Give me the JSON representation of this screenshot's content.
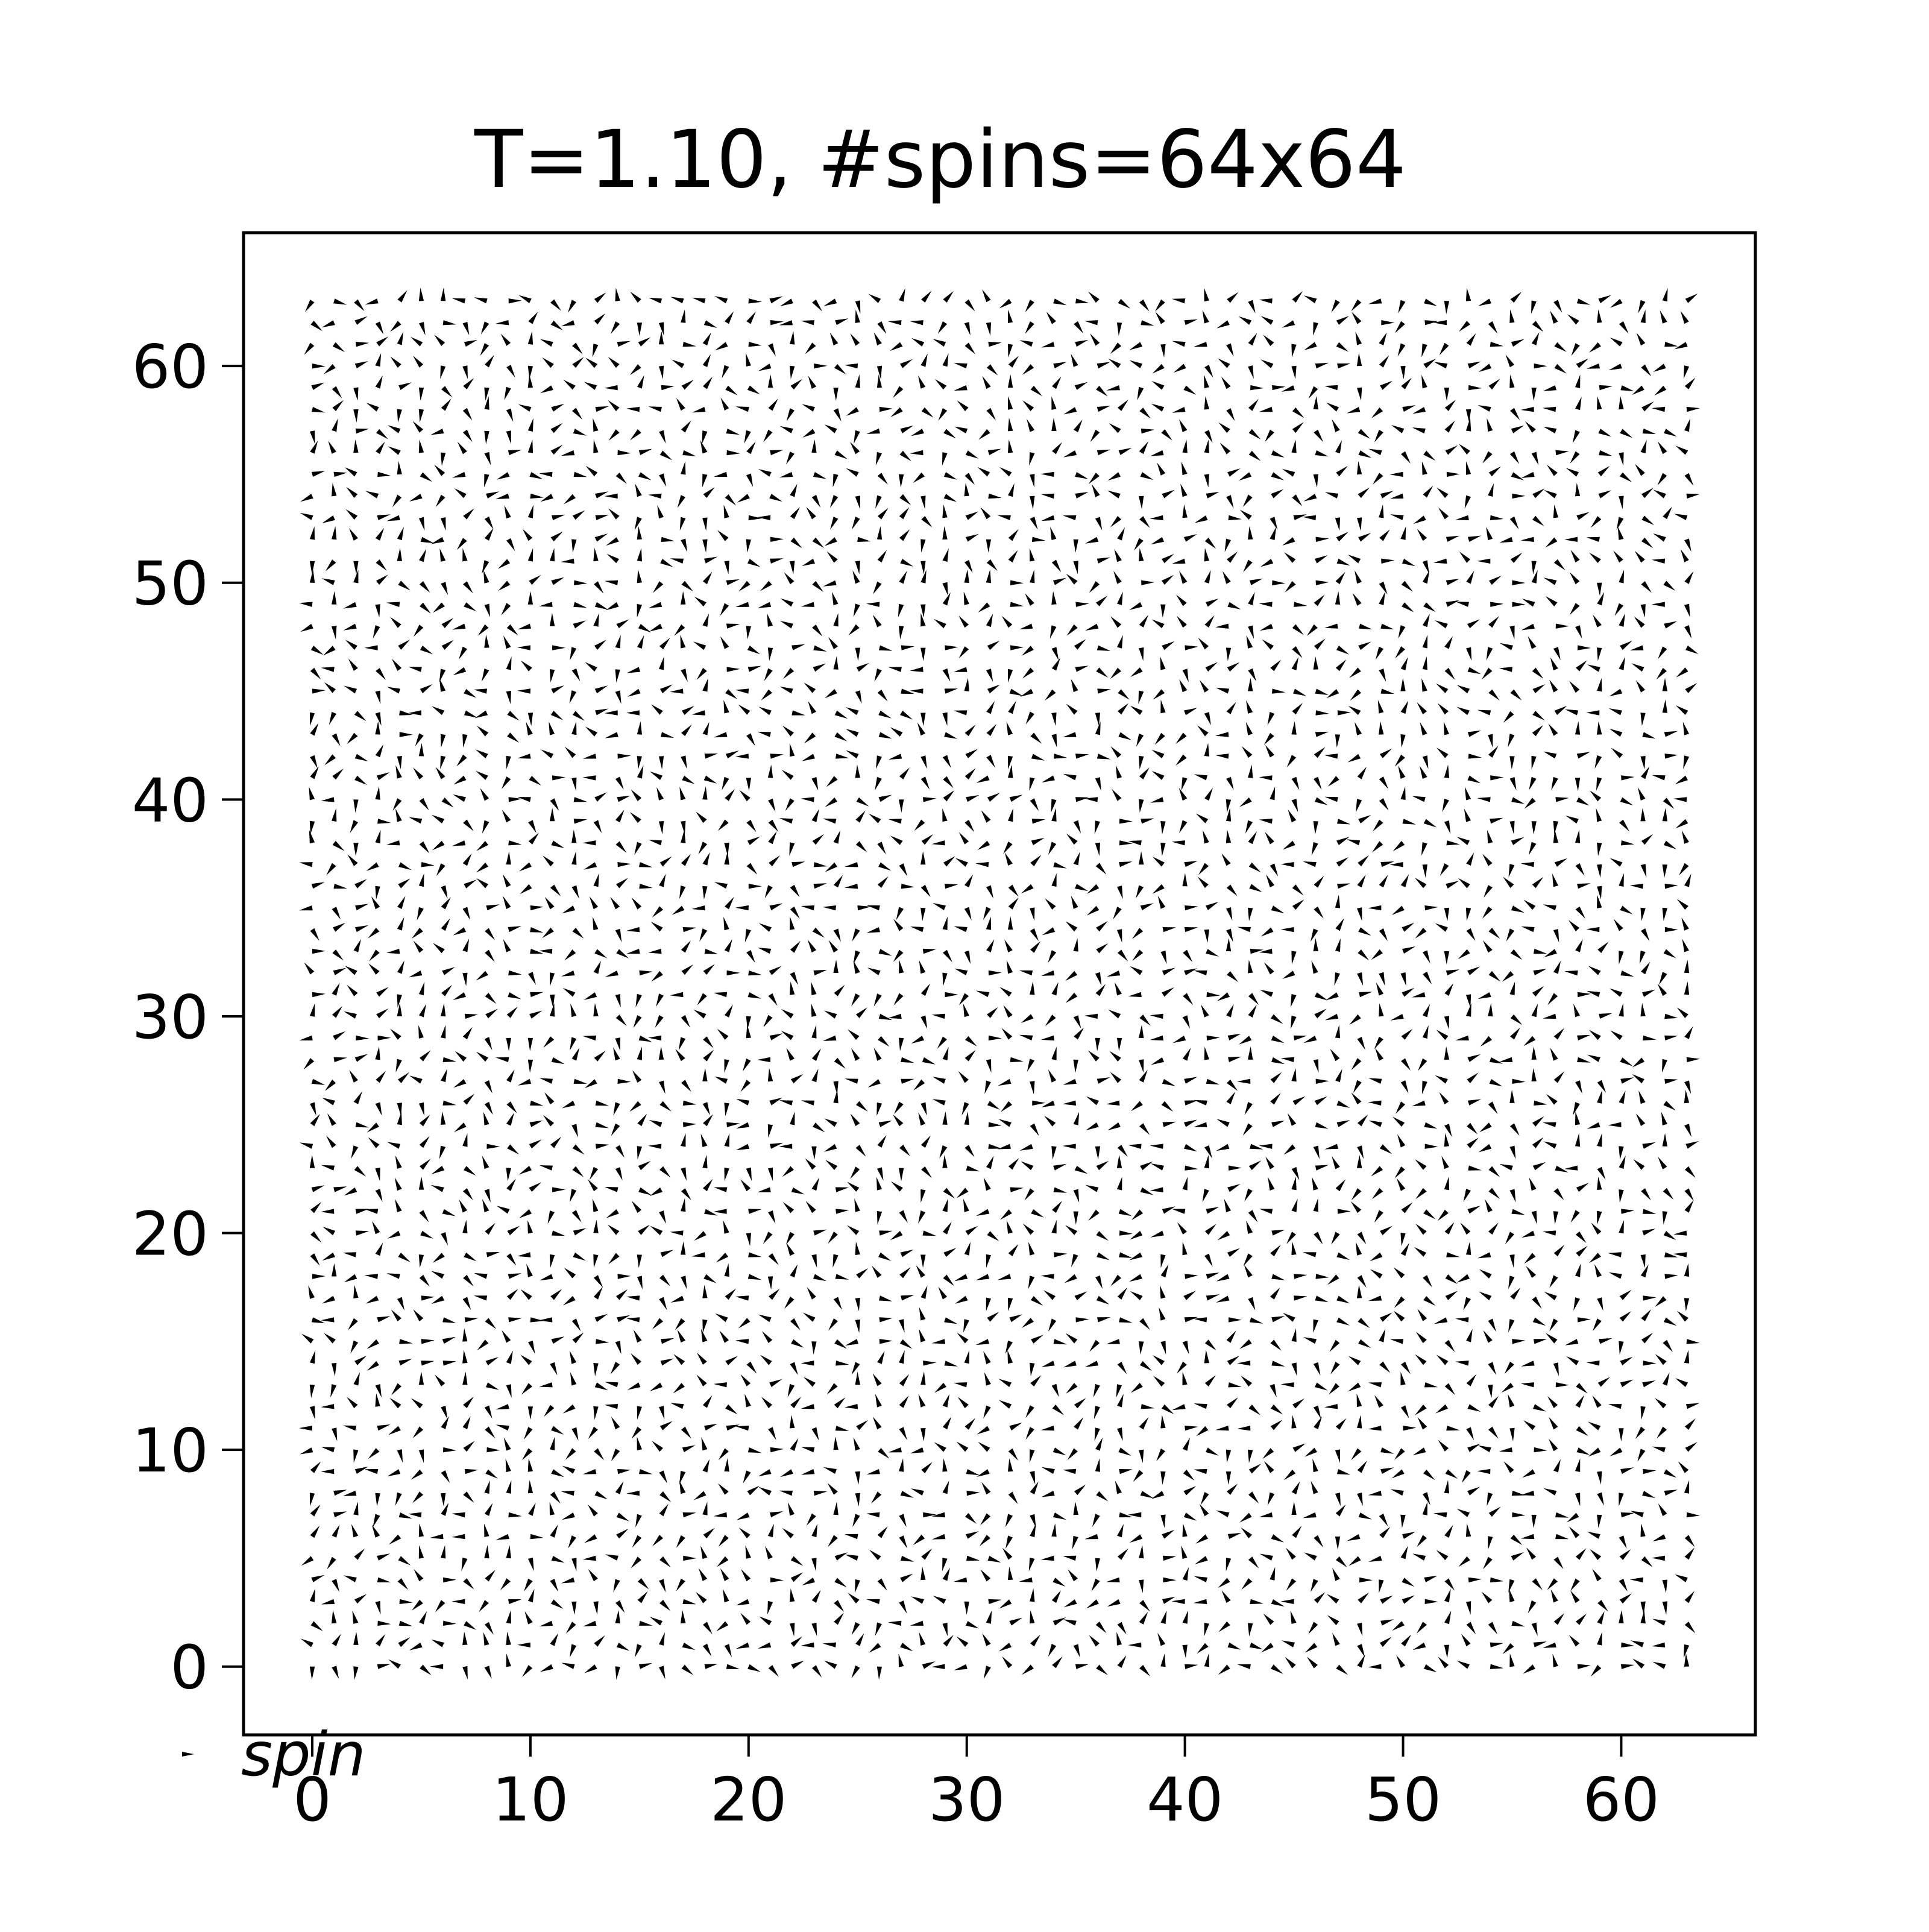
{
  "chart_data": {
    "type": "quiver",
    "title": "T=1.10, #spins=64x64",
    "xlabel": "",
    "ylabel": "",
    "xlim": [
      -3.15,
      66.15
    ],
    "ylim": [
      -3.15,
      66.15
    ],
    "xticks": [
      0,
      10,
      20,
      30,
      40,
      50,
      60
    ],
    "yticks": [
      0,
      10,
      20,
      30,
      40,
      50,
      60
    ],
    "grid": false,
    "lattice": {
      "nx": 64,
      "ny": 64
    },
    "spin_angle_seed": 1100,
    "quiver_key": {
      "label": "spin",
      "placement": "bottom-left-outside"
    },
    "colors": {
      "arrow": "#000000",
      "axes": "#000000",
      "background": "#ffffff"
    }
  }
}
